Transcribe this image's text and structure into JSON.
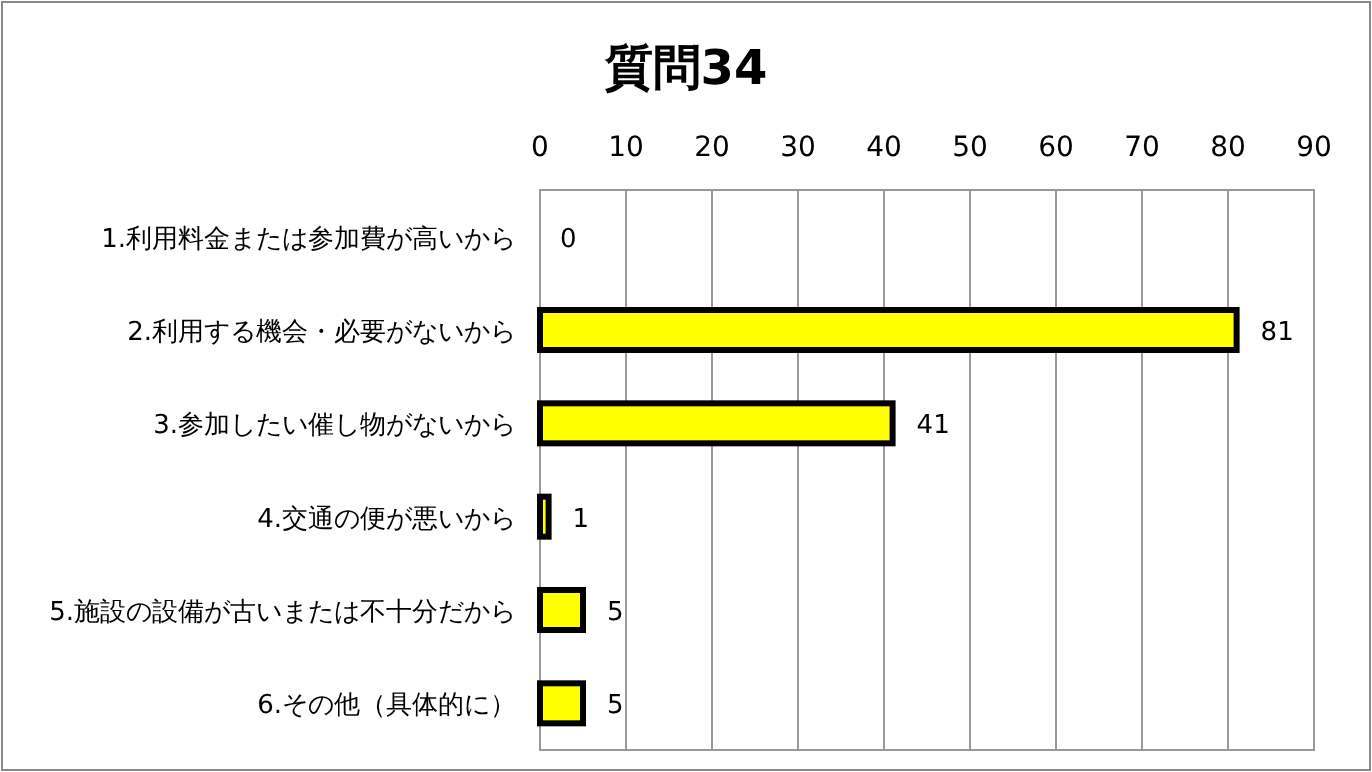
{
  "chart_data": {
    "type": "bar",
    "orientation": "horizontal",
    "title": "質問34",
    "categories": [
      "1.利用料金または参加費が高いから",
      "2.利用する機会・必要がないから",
      "3.参加したい催し物がないから",
      "4.交通の便が悪いから",
      "5.施設の設備が古いまたは不十分だから",
      "6.その他（具体的に）"
    ],
    "values": [
      0,
      81,
      41,
      1,
      5,
      5
    ],
    "color": "#ffff00",
    "xlim": [
      0,
      90
    ],
    "xticks": [
      0,
      10,
      20,
      30,
      40,
      50,
      60,
      70,
      80,
      90
    ],
    "grid": "x",
    "data_labels": true
  }
}
